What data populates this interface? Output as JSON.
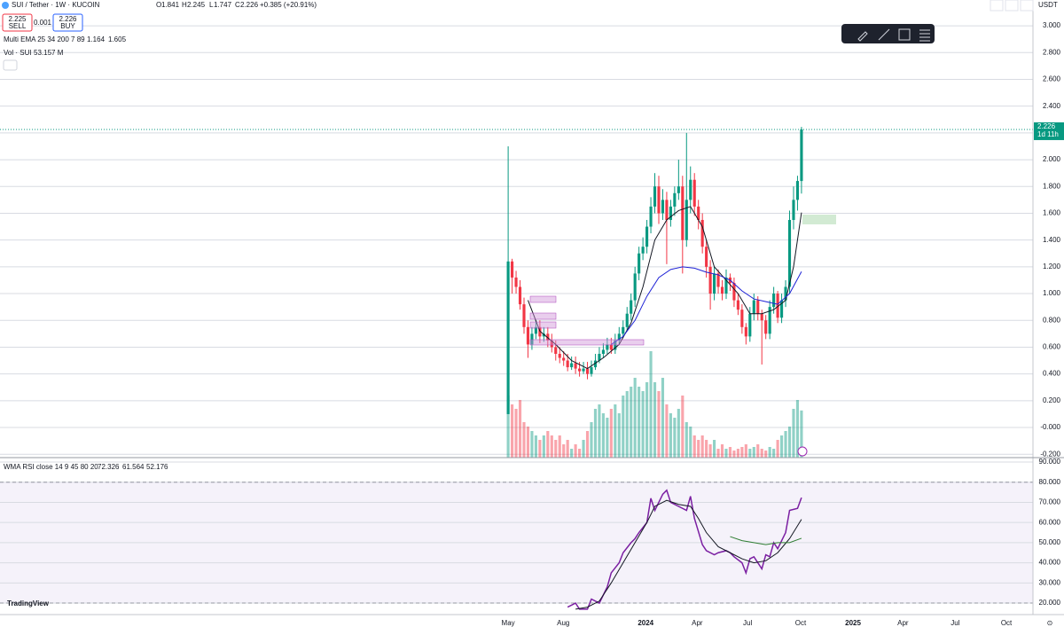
{
  "header": {
    "symbol": "SUI / Tether · 1W · KUCOIN",
    "open_label": "O",
    "high_label": "H",
    "low_label": "L",
    "close_label": "C",
    "change": "+0.385 (+20.91%)",
    "sell_price": "2.225",
    "sell": "SELL",
    "spread": "0.001",
    "buy_price": "2.226",
    "buy": "BUY",
    "ema_indicator": "Multi EMA 25 34 200 7 89",
    "vol_indicator": "Vol · SUI",
    "vol_value": "53.157 M",
    "rsi_indicator": "WMA RSI close 14 9 45 80 20",
    "currency": "USDT",
    "countdown": "1d 11h",
    "brand": "TradingView"
  },
  "chart_data": [
    {
      "type": "candlestick",
      "open": [
        0.1,
        1.24,
        1.12,
        1.05,
        0.92,
        0.75,
        0.62,
        0.7,
        0.75,
        0.68,
        0.7,
        0.65,
        0.6,
        0.55,
        0.52,
        0.5,
        0.45,
        0.48,
        0.44,
        0.42,
        0.44,
        0.4,
        0.45,
        0.5,
        0.55,
        0.58,
        0.62,
        0.58,
        0.65,
        0.7,
        0.75,
        0.85,
        0.95,
        1.15,
        1.3,
        1.35,
        1.5,
        1.65,
        1.8,
        1.6,
        1.7,
        1.55,
        1.65,
        1.75,
        1.8,
        1.4,
        1.7,
        1.85,
        1.65,
        1.55,
        1.35,
        1.2,
        1.0,
        1.15,
        1.05,
        1.0,
        1.12,
        1.08,
        0.95,
        0.88,
        0.75,
        0.68,
        0.85,
        0.95,
        0.85,
        0.8,
        0.7,
        0.9,
        1.0,
        0.82,
        0.95,
        1.05,
        1.55,
        1.7,
        1.841
      ],
      "high": [
        2.1,
        1.26,
        1.17,
        1.1,
        0.97,
        0.8,
        0.75,
        0.8,
        0.8,
        0.75,
        0.75,
        0.7,
        0.65,
        0.6,
        0.57,
        0.55,
        0.53,
        0.53,
        0.49,
        0.49,
        0.49,
        0.5,
        0.55,
        0.6,
        0.63,
        0.67,
        0.67,
        0.7,
        0.75,
        0.8,
        0.9,
        1.0,
        1.2,
        1.35,
        1.42,
        1.55,
        1.72,
        1.9,
        1.88,
        1.78,
        1.76,
        1.7,
        1.8,
        2.0,
        1.88,
        2.2,
        1.95,
        1.9,
        1.7,
        1.6,
        1.4,
        1.25,
        1.2,
        1.18,
        1.1,
        1.18,
        1.15,
        1.12,
        1.0,
        0.92,
        0.78,
        0.9,
        1.0,
        0.98,
        0.88,
        0.84,
        0.95,
        1.05,
        1.02,
        1.0,
        1.1,
        1.62,
        1.8,
        1.88,
        2.245
      ],
      "low": [
        0.1,
        1.0,
        1.0,
        0.88,
        0.7,
        0.52,
        0.58,
        0.66,
        0.63,
        0.64,
        0.6,
        0.56,
        0.5,
        0.48,
        0.46,
        0.42,
        0.43,
        0.4,
        0.38,
        0.4,
        0.36,
        0.38,
        0.43,
        0.48,
        0.52,
        0.55,
        0.55,
        0.55,
        0.62,
        0.67,
        0.72,
        0.8,
        0.9,
        1.1,
        1.25,
        1.3,
        1.45,
        1.6,
        1.52,
        1.55,
        1.22,
        1.5,
        1.58,
        1.7,
        1.15,
        1.35,
        1.6,
        1.58,
        1.48,
        1.3,
        1.12,
        0.88,
        0.95,
        1.0,
        0.95,
        0.96,
        1.02,
        0.9,
        0.84,
        0.7,
        0.62,
        0.64,
        0.8,
        0.8,
        0.47,
        0.66,
        0.66,
        0.85,
        0.78,
        0.78,
        0.9,
        1.0,
        1.48,
        1.62,
        1.747
      ],
      "close": [
        1.24,
        1.12,
        1.05,
        0.92,
        0.75,
        0.62,
        0.7,
        0.75,
        0.68,
        0.7,
        0.65,
        0.6,
        0.55,
        0.52,
        0.5,
        0.45,
        0.48,
        0.44,
        0.42,
        0.44,
        0.4,
        0.45,
        0.5,
        0.55,
        0.58,
        0.62,
        0.58,
        0.65,
        0.7,
        0.75,
        0.85,
        0.95,
        1.15,
        1.3,
        1.35,
        1.5,
        1.65,
        1.8,
        1.6,
        1.7,
        1.55,
        1.65,
        1.75,
        1.8,
        1.4,
        1.7,
        1.85,
        1.65,
        1.55,
        1.35,
        1.2,
        1.0,
        1.15,
        1.05,
        1.0,
        1.12,
        1.08,
        0.95,
        0.88,
        0.75,
        0.68,
        0.85,
        0.95,
        0.85,
        0.8,
        0.7,
        0.9,
        1.0,
        0.82,
        0.95,
        1.05,
        1.55,
        1.7,
        1.841,
        2.226
      ],
      "volume": [
        70,
        60,
        55,
        65,
        40,
        35,
        30,
        25,
        20,
        25,
        30,
        25,
        20,
        25,
        15,
        20,
        10,
        15,
        10,
        20,
        30,
        40,
        55,
        60,
        50,
        45,
        55,
        60,
        50,
        70,
        75,
        80,
        90,
        80,
        75,
        85,
        120,
        85,
        75,
        90,
        60,
        50,
        45,
        55,
        70,
        40,
        35,
        25,
        20,
        25,
        20,
        15,
        20,
        10,
        15,
        10,
        12,
        8,
        10,
        12,
        15,
        10,
        12,
        15,
        10,
        8,
        12,
        10,
        20,
        25,
        30,
        35,
        55,
        65,
        53.157
      ],
      "up_color": "#089981",
      "down_color": "#f23645",
      "series": [
        {
          "color": "#131722",
          "x": [
            5,
            8,
            12,
            16,
            20,
            24,
            28,
            31,
            34,
            37,
            40,
            43,
            46,
            49,
            52,
            55,
            58,
            61,
            64,
            67,
            70,
            72,
            74
          ],
          "values": [
            0.95,
            0.72,
            0.62,
            0.5,
            0.44,
            0.52,
            0.62,
            0.78,
            1.05,
            1.4,
            1.55,
            1.62,
            1.65,
            1.5,
            1.2,
            1.1,
            1.0,
            0.85,
            0.85,
            0.88,
            0.95,
            1.2,
            1.605
          ]
        },
        {
          "color": "#1e22d6",
          "x": [
            26,
            29,
            32,
            35,
            38,
            41,
            44,
            47,
            50,
            53,
            56,
            59,
            62,
            65,
            68,
            71,
            74
          ],
          "values": [
            0.62,
            0.68,
            0.8,
            0.98,
            1.12,
            1.18,
            1.2,
            1.19,
            1.16,
            1.14,
            1.1,
            1.02,
            0.96,
            0.94,
            0.92,
            1.0,
            1.164
          ]
        }
      ],
      "xlim": [
        -128.2,
        132.4
      ],
      "ylim": [
        -0.225,
        3.1
      ],
      "xticks": [
        {
          "value": 0,
          "label": "May"
        },
        {
          "value": 13.9,
          "label": "Aug"
        },
        {
          "value": 34.7,
          "label": "2024"
        },
        {
          "value": 47.7,
          "label": "Apr"
        },
        {
          "value": 60.4,
          "label": "Jul"
        },
        {
          "value": 73.8,
          "label": "Oct"
        },
        {
          "value": 87,
          "label": "2025"
        },
        {
          "value": 99.6,
          "label": "Apr"
        },
        {
          "value": 112.8,
          "label": "Jul"
        },
        {
          "value": 125.7,
          "label": "Oct"
        }
      ],
      "yticks": [
        {
          "value": 3,
          "label": "3.000"
        },
        {
          "value": 2.8,
          "label": "2.800"
        },
        {
          "value": 2.6,
          "label": "2.600"
        },
        {
          "value": 2.4,
          "label": "2.400"
        },
        {
          "value": 2.2,
          "label": "2.200"
        },
        {
          "value": 2,
          "label": "2.000"
        },
        {
          "value": 1.8,
          "label": "1.800"
        },
        {
          "value": 1.6,
          "label": "1.600"
        },
        {
          "value": 1.4,
          "label": "1.400"
        },
        {
          "value": 1.2,
          "label": "1.200"
        },
        {
          "value": 1,
          "label": "1.000"
        },
        {
          "value": 0.8,
          "label": "0.800"
        },
        {
          "value": 0.6,
          "label": "0.600"
        },
        {
          "value": 0.4,
          "label": "0.400"
        },
        {
          "value": 0.2,
          "label": "0.200"
        },
        {
          "value": 0,
          "label": "-0.000"
        },
        {
          "value": -0.2,
          "label": "-0.200"
        }
      ],
      "grid": true
    },
    {
      "type": "line",
      "series": [
        {
          "color": "#7b1fa2",
          "x": [
            15,
            17,
            18,
            20,
            21,
            23,
            25,
            26,
            28,
            29,
            31,
            32,
            33,
            35,
            36,
            37,
            38,
            39,
            40,
            41,
            42,
            44,
            45,
            46,
            47,
            49,
            50,
            52,
            53,
            55,
            56,
            57,
            59,
            60,
            61,
            62,
            64,
            65,
            66,
            67,
            68,
            70,
            71,
            73,
            74
          ],
          "values": [
            18,
            20,
            17,
            17,
            22,
            20,
            28,
            35,
            40,
            45,
            50,
            52,
            55,
            60,
            72,
            66,
            70,
            74,
            76,
            70,
            69,
            67,
            66,
            73,
            62,
            49,
            46,
            44,
            45,
            46,
            45,
            43,
            40,
            35,
            42,
            43,
            37,
            44,
            43,
            50,
            47,
            55,
            66,
            67,
            72.326
          ]
        },
        {
          "color": "#131722",
          "x": [
            17,
            20,
            23,
            26,
            29,
            32,
            35,
            37,
            40,
            43,
            46,
            48,
            50,
            53,
            56,
            59,
            62,
            65,
            68,
            71,
            74
          ],
          "values": [
            17,
            18,
            21,
            30,
            40,
            50,
            60,
            68,
            71,
            69,
            68,
            62,
            55,
            48,
            45,
            42,
            40,
            41,
            45,
            52,
            61.564
          ]
        },
        {
          "color": "#2e7d32",
          "x": [
            56,
            59,
            62,
            65,
            68,
            71,
            74
          ],
          "values": [
            53,
            51,
            50,
            49,
            50,
            50,
            52.176
          ]
        }
      ],
      "band": [
        20,
        80
      ],
      "band_color": "#7e57c2",
      "xlim": [
        -128.2,
        132.4
      ],
      "ylim": [
        14.3,
        92.2
      ],
      "yticks": [
        {
          "value": 90,
          "label": "90.000"
        },
        {
          "value": 80,
          "label": "80.000"
        },
        {
          "value": 70,
          "label": "70.000"
        },
        {
          "value": 60,
          "label": "60.000"
        },
        {
          "value": 50,
          "label": "50.000"
        },
        {
          "value": 40,
          "label": "40.000"
        },
        {
          "value": 30,
          "label": "30.000"
        },
        {
          "value": 20,
          "label": "20.000"
        }
      ],
      "grid": true
    }
  ]
}
